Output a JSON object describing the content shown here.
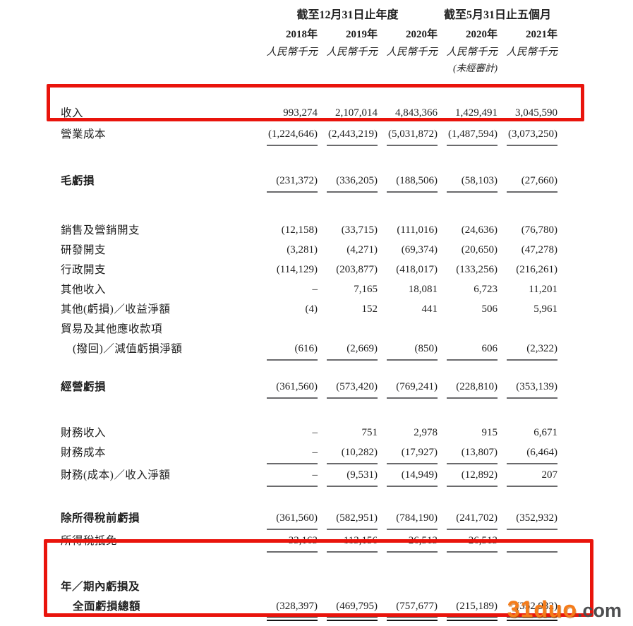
{
  "header": {
    "groups": [
      {
        "label": "截至12月31日止年度",
        "span": 3
      },
      {
        "label": "截至5月31日止五個月",
        "span": 2
      }
    ],
    "columns": [
      {
        "year": "2018年",
        "unit": "人民幣千元",
        "note": ""
      },
      {
        "year": "2019年",
        "unit": "人民幣千元",
        "note": ""
      },
      {
        "year": "2020年",
        "unit": "人民幣千元",
        "note": ""
      },
      {
        "year": "2020年",
        "unit": "人民幣千元",
        "note": "(未經審計)"
      },
      {
        "year": "2021年",
        "unit": "人民幣千元",
        "note": ""
      }
    ]
  },
  "rows": [
    {
      "id": "revenue",
      "label": "收入",
      "bold": false,
      "indent": false,
      "gap": 0,
      "rule": "none",
      "values": [
        "993,274",
        "2,107,014",
        "4,843,366",
        "1,429,491",
        "3,045,590"
      ]
    },
    {
      "id": "cost-of-sales",
      "label": "營業成本",
      "bold": false,
      "indent": false,
      "gap": 2,
      "rule": "single",
      "values": [
        "(1,224,646)",
        "(2,443,219)",
        "(5,031,872)",
        "(1,487,594)",
        "(3,073,250)"
      ]
    },
    {
      "id": "gross-loss",
      "label": "毛虧損",
      "bold": true,
      "indent": false,
      "gap": 38,
      "rule": "single",
      "values": [
        "(231,372)",
        "(336,205)",
        "(188,506)",
        "(58,103)",
        "(27,660)"
      ]
    },
    {
      "id": "selling-marketing",
      "label": "銷售及營銷開支",
      "bold": false,
      "indent": false,
      "gap": 42,
      "rule": "none",
      "values": [
        "(12,158)",
        "(33,715)",
        "(111,016)",
        "(24,636)",
        "(76,780)"
      ]
    },
    {
      "id": "rd-expenses",
      "label": "研發開支",
      "bold": false,
      "indent": false,
      "gap": 0,
      "rule": "none",
      "values": [
        "(3,281)",
        "(4,271)",
        "(69,374)",
        "(20,650)",
        "(47,278)"
      ]
    },
    {
      "id": "admin-expenses",
      "label": "行政開支",
      "bold": false,
      "indent": false,
      "gap": 0,
      "rule": "none",
      "values": [
        "(114,129)",
        "(203,877)",
        "(418,017)",
        "(133,256)",
        "(216,261)"
      ]
    },
    {
      "id": "other-income",
      "label": "其他收入",
      "bold": false,
      "indent": false,
      "gap": 0,
      "rule": "none",
      "values": [
        "–",
        "7,165",
        "18,081",
        "6,723",
        "11,201"
      ]
    },
    {
      "id": "other-gains-net",
      "label": "其他(虧損)／收益淨額",
      "bold": false,
      "indent": false,
      "gap": 0,
      "rule": "none",
      "values": [
        "(4)",
        "152",
        "441",
        "506",
        "5,961"
      ]
    },
    {
      "id": "trade-receivables",
      "label": "貿易及其他應收款項",
      "bold": false,
      "indent": false,
      "gap": 0,
      "rule": "none",
      "values": null
    },
    {
      "id": "impairment-net",
      "label": "(撥回)／減值虧損淨額",
      "bold": false,
      "indent": true,
      "gap": 0,
      "rule": "single",
      "values": [
        "(616)",
        "(2,669)",
        "(850)",
        "606",
        "(2,322)"
      ]
    },
    {
      "id": "operating-loss",
      "label": "經營虧損",
      "bold": true,
      "indent": false,
      "gap": 26,
      "rule": "single",
      "values": [
        "(361,560)",
        "(573,420)",
        "(769,241)",
        "(228,810)",
        "(353,139)"
      ]
    },
    {
      "id": "finance-income",
      "label": "財務收入",
      "bold": false,
      "indent": false,
      "gap": 37,
      "rule": "none",
      "values": [
        "–",
        "751",
        "2,978",
        "915",
        "6,671"
      ]
    },
    {
      "id": "finance-costs",
      "label": "財務成本",
      "bold": false,
      "indent": false,
      "gap": 0,
      "rule": "single",
      "values": [
        "–",
        "(10,282)",
        "(17,927)",
        "(13,807)",
        "(6,464)"
      ]
    },
    {
      "id": "finance-net",
      "label": "財務(成本)／收入淨額",
      "bold": false,
      "indent": false,
      "gap": 4,
      "rule": "single",
      "values": [
        "–",
        "(9,531)",
        "(14,949)",
        "(12,892)",
        "207"
      ]
    },
    {
      "id": "loss-before-tax",
      "label": "除所得稅前虧損",
      "bold": true,
      "indent": false,
      "gap": 33,
      "rule": "single",
      "values": [
        "(361,560)",
        "(582,951)",
        "(784,190)",
        "(241,702)",
        "(352,932)"
      ]
    },
    {
      "id": "income-tax-credit",
      "label": "所得稅抵免",
      "bold": false,
      "indent": false,
      "gap": 4,
      "rule": "single",
      "values": [
        "33,163",
        "113,156",
        "26,513",
        "26,513",
        "–"
      ]
    },
    {
      "id": "total-loss-line1",
      "label": "年／期內虧損及",
      "bold": true,
      "indent": false,
      "gap": 37,
      "rule": "none",
      "values": null
    },
    {
      "id": "total-loss-line2",
      "label": "全面虧損總額",
      "bold": true,
      "indent": true,
      "gap": 0,
      "rule": "double",
      "values": [
        "(328,397)",
        "(469,795)",
        "(757,677)",
        "(215,189)",
        "(352,932)"
      ]
    }
  ],
  "highlights": [
    {
      "id": "revenue-highlight"
    },
    {
      "id": "total-loss-highlight"
    }
  ],
  "watermark": {
    "brand": "31duo",
    "suffix": ".com"
  },
  "colors": {
    "highlight_red": "#e9140c",
    "text": "#1f1f1f",
    "rule_gray": "#6a6a6c",
    "rule_black": "#141414",
    "watermark_orange": "#f57c1a",
    "watermark_gray": "#4d4e50"
  }
}
